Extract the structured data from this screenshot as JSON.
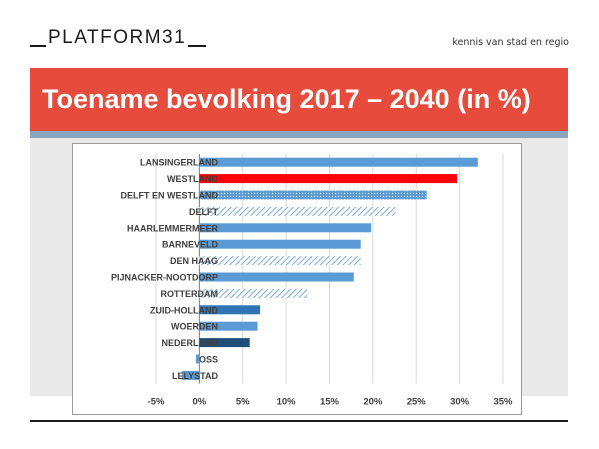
{
  "header": {
    "logo_text": "PLATFORM31",
    "tagline": "kennis van stad en regio"
  },
  "banner": {
    "title": "Toename bevolking 2017 – 2040 (in %)"
  },
  "colors": {
    "banner": "#e64b3b",
    "band": "#8aa6bd",
    "municipality": "#5b9bd5",
    "westland": "#ff0000",
    "province": "#2e75b6",
    "netherlands": "#1f4e79"
  },
  "chart_data": {
    "type": "bar",
    "orientation": "horizontal",
    "categories": [
      "LANSINGERLAND",
      "WESTLAND",
      "DELFT EN WESTLAND",
      "DELFT",
      "HAARLEMMERMEER",
      "BARNEVELD",
      "DEN HAAG",
      "PIJNACKER-NOOTDORP",
      "ROTTERDAM",
      "ZUID-HOLLAND",
      "WOERDEN",
      "NEDERLAND",
      "OSS",
      "LELYSTAD"
    ],
    "values": [
      32.1,
      29.7,
      26.2,
      22.6,
      19.8,
      18.6,
      18.6,
      17.8,
      12.4,
      7.0,
      6.7,
      5.8,
      -0.4,
      -2.0
    ],
    "bar_styles": [
      "solid",
      "solid",
      "dotted",
      "hatched",
      "solid",
      "solid",
      "hatched",
      "solid",
      "hatched",
      "solid",
      "solid",
      "solid",
      "solid",
      "solid"
    ],
    "bar_colors": [
      "#5b9bd5",
      "#ff0000",
      "#5b9bd5",
      "#5b9bd5",
      "#5b9bd5",
      "#5b9bd5",
      "#5b9bd5",
      "#5b9bd5",
      "#5b9bd5",
      "#2e75b6",
      "#5b9bd5",
      "#1f4e79",
      "#5b9bd5",
      "#5b9bd5"
    ],
    "xticks": [
      "-5%",
      "0%",
      "5%",
      "10%",
      "15%",
      "20%",
      "25%",
      "30%",
      "35%"
    ],
    "xtick_values": [
      -5,
      0,
      5,
      10,
      15,
      20,
      25,
      30,
      35
    ],
    "xlim": [
      -5,
      35
    ],
    "grid": true,
    "title": "",
    "xlabel": "",
    "ylabel": ""
  }
}
